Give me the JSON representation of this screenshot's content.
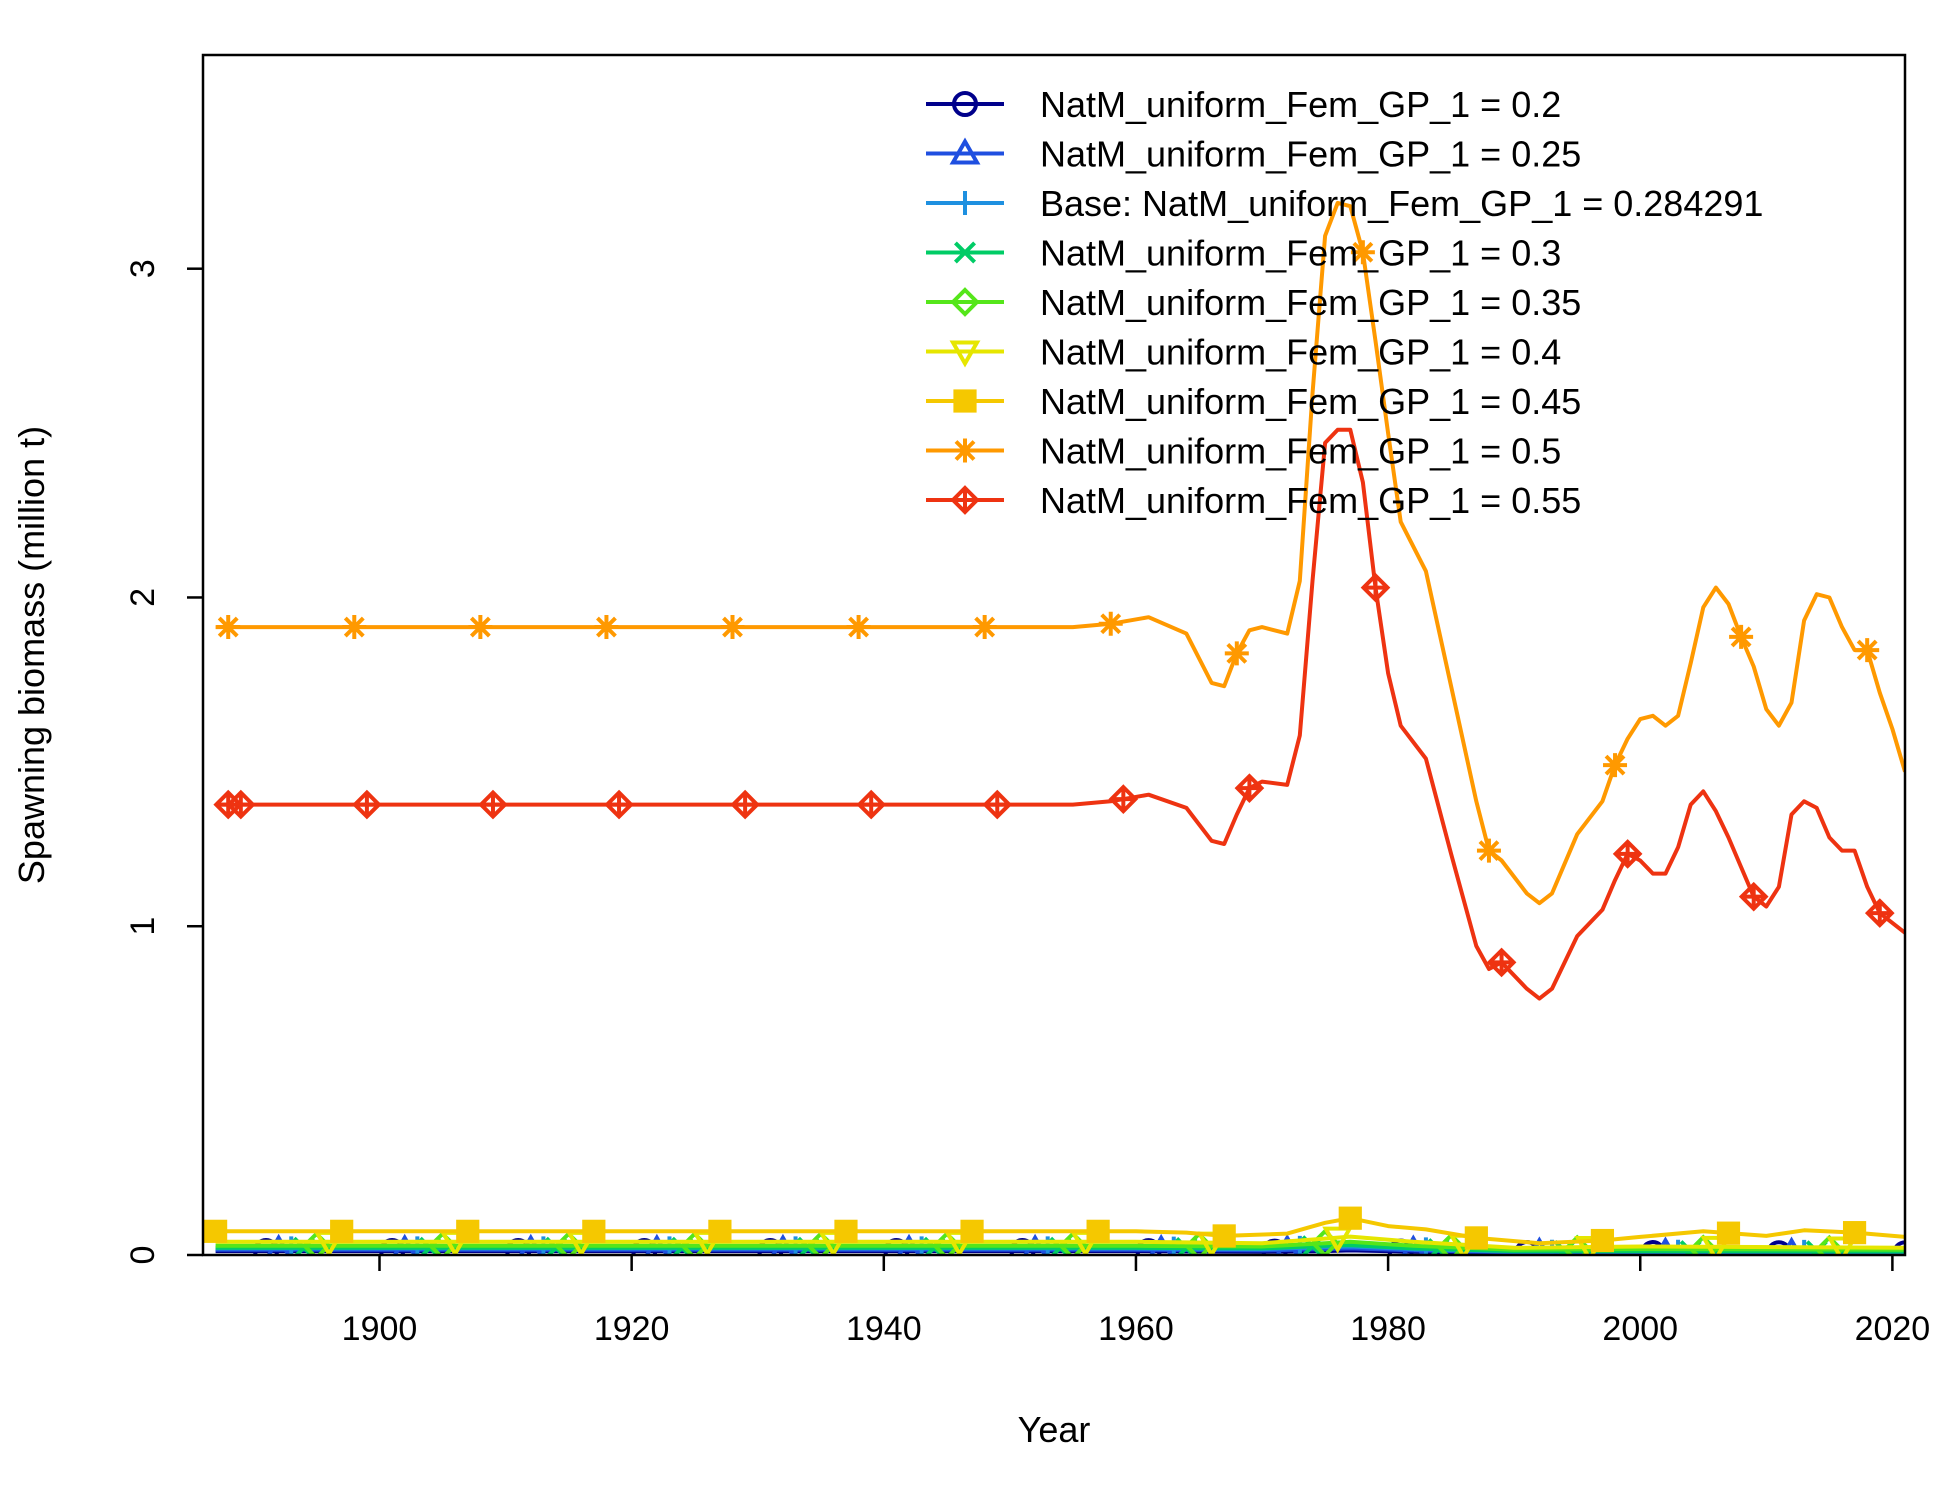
{
  "chart_data": {
    "type": "line",
    "xlabel": "Year",
    "ylabel": "Spawning biomass (million t)",
    "xlim": [
      1886,
      2021
    ],
    "ylim": [
      0,
      3.65
    ],
    "x_ticks": [
      1900,
      1920,
      1940,
      1960,
      1980,
      2000,
      2020
    ],
    "y_ticks": [
      0,
      1,
      2,
      3
    ],
    "grid": false,
    "legend_position": "top-right",
    "series": [
      {
        "name": "NatM_uniform_Fem_GP_1 = 0.2",
        "color": "#00008B",
        "marker": "circle",
        "marker_years": [
          1891,
          1901,
          1911,
          1921,
          1931,
          1941,
          1951,
          1961,
          1971,
          1981,
          1991,
          2001,
          2011,
          2021
        ],
        "x": [
          1887,
          1960,
          1970,
          1975,
          1977,
          1982,
          1990,
          2000,
          2021
        ],
        "y": [
          0.012,
          0.012,
          0.01,
          0.012,
          0.014,
          0.01,
          0.006,
          0.006,
          0.005
        ]
      },
      {
        "name": "NatM_uniform_Fem_GP_1 = 0.25",
        "color": "#1F4FE0",
        "marker": "triangle-up",
        "marker_years": [
          1892,
          1902,
          1912,
          1922,
          1932,
          1942,
          1952,
          1962,
          1972,
          1982,
          1992,
          2002,
          2012
        ],
        "x": [
          1887,
          1960,
          1970,
          1975,
          1977,
          1982,
          1990,
          2000,
          2021
        ],
        "y": [
          0.016,
          0.016,
          0.014,
          0.018,
          0.02,
          0.014,
          0.008,
          0.008,
          0.007
        ]
      },
      {
        "name": "Base: NatM_uniform_Fem_GP_1 = 0.284291",
        "color": "#1E90E0",
        "marker": "plus",
        "marker_years": [
          1893,
          1903,
          1913,
          1923,
          1933,
          1943,
          1953,
          1963,
          1973,
          1983,
          1993,
          2003,
          2013
        ],
        "x": [
          1887,
          1960,
          1970,
          1975,
          1977,
          1982,
          1990,
          2000,
          2021
        ],
        "y": [
          0.02,
          0.02,
          0.018,
          0.024,
          0.026,
          0.018,
          0.01,
          0.01,
          0.009
        ]
      },
      {
        "name": "NatM_uniform_Fem_GP_1 = 0.3",
        "color": "#00CC66",
        "marker": "x",
        "marker_years": [
          1894,
          1904,
          1914,
          1924,
          1934,
          1944,
          1954,
          1964,
          1974,
          1984,
          1994,
          2004,
          2014
        ],
        "x": [
          1887,
          1960,
          1970,
          1975,
          1977,
          1982,
          1990,
          2000,
          2021
        ],
        "y": [
          0.022,
          0.022,
          0.02,
          0.028,
          0.03,
          0.02,
          0.012,
          0.012,
          0.011
        ]
      },
      {
        "name": "NatM_uniform_Fem_GP_1 = 0.35",
        "color": "#55E61A",
        "marker": "diamond",
        "marker_years": [
          1895,
          1905,
          1915,
          1925,
          1935,
          1945,
          1955,
          1965,
          1975,
          1985,
          1995,
          2005,
          2015
        ],
        "x": [
          1887,
          1960,
          1970,
          1975,
          1977,
          1982,
          1990,
          2000,
          2021
        ],
        "y": [
          0.028,
          0.028,
          0.026,
          0.036,
          0.04,
          0.028,
          0.016,
          0.018,
          0.016
        ]
      },
      {
        "name": "NatM_uniform_Fem_GP_1 = 0.4",
        "color": "#E6E600",
        "marker": "triangle-down",
        "marker_years": [
          1896,
          1906,
          1916,
          1926,
          1936,
          1946,
          1956,
          1966,
          1976,
          1986,
          1996,
          2006,
          2016
        ],
        "x": [
          1887,
          1960,
          1970,
          1975,
          1977,
          1982,
          1990,
          2000,
          2021
        ],
        "y": [
          0.04,
          0.04,
          0.036,
          0.05,
          0.056,
          0.04,
          0.022,
          0.026,
          0.022
        ]
      },
      {
        "name": "NatM_uniform_Fem_GP_1 = 0.45",
        "color": "#F5C800",
        "marker": "square",
        "marker_years": [
          1887,
          1897,
          1907,
          1917,
          1927,
          1937,
          1947,
          1957,
          1967,
          1977,
          1987,
          1997,
          2007,
          2017
        ],
        "x": [
          1887,
          1960,
          1964,
          1967,
          1972,
          1975,
          1977,
          1980,
          1983,
          1987,
          1992,
          1997,
          2000,
          2005,
          2010,
          2013,
          2017,
          2021
        ],
        "y": [
          0.072,
          0.072,
          0.068,
          0.058,
          0.065,
          0.098,
          0.112,
          0.088,
          0.078,
          0.052,
          0.036,
          0.044,
          0.055,
          0.072,
          0.058,
          0.075,
          0.068,
          0.055
        ]
      },
      {
        "name": "NatM_uniform_Fem_GP_1 = 0.5",
        "color": "#FF9900",
        "marker": "asterisk",
        "marker_years": [
          1888,
          1898,
          1908,
          1918,
          1928,
          1938,
          1948,
          1958,
          1968,
          1978,
          1988,
          1998,
          2008,
          2018
        ],
        "x": [
          1887,
          1955,
          1958,
          1961,
          1964,
          1966,
          1967,
          1968,
          1969,
          1970,
          1972,
          1973,
          1974,
          1975,
          1976,
          1977,
          1978,
          1979,
          1980,
          1981,
          1983,
          1985,
          1987,
          1988,
          1989,
          1991,
          1992,
          1993,
          1995,
          1997,
          1998,
          1999,
          2000,
          2001,
          2002,
          2003,
          2004,
          2005,
          2006,
          2007,
          2008,
          2009,
          2010,
          2011,
          2012,
          2013,
          2014,
          2015,
          2016,
          2017,
          2018,
          2019,
          2020,
          2021
        ],
        "y": [
          1.91,
          1.91,
          1.92,
          1.94,
          1.89,
          1.74,
          1.73,
          1.83,
          1.9,
          1.91,
          1.89,
          2.05,
          2.62,
          3.1,
          3.2,
          3.19,
          3.05,
          2.78,
          2.5,
          2.23,
          2.08,
          1.73,
          1.38,
          1.23,
          1.2,
          1.1,
          1.07,
          1.1,
          1.28,
          1.38,
          1.49,
          1.57,
          1.63,
          1.64,
          1.61,
          1.64,
          1.8,
          1.97,
          2.03,
          1.98,
          1.88,
          1.79,
          1.66,
          1.61,
          1.68,
          1.93,
          2.01,
          2.0,
          1.91,
          1.84,
          1.84,
          1.71,
          1.6,
          1.47
        ]
      },
      {
        "name": "NatM_uniform_Fem_GP_1 = 0.55",
        "color": "#EE3311",
        "marker": "diamond-plus",
        "marker_years": [
          1888,
          1889,
          1899,
          1909,
          1919,
          1929,
          1939,
          1949,
          1959,
          1969,
          1979,
          1989,
          1999,
          2009,
          2019
        ],
        "x": [
          1887,
          1955,
          1958,
          1961,
          1964,
          1966,
          1967,
          1968,
          1969,
          1970,
          1972,
          1973,
          1974,
          1975,
          1976,
          1977,
          1978,
          1979,
          1980,
          1981,
          1983,
          1985,
          1987,
          1988,
          1989,
          1991,
          1992,
          1993,
          1995,
          1997,
          1998,
          1999,
          2000,
          2001,
          2002,
          2003,
          2004,
          2005,
          2006,
          2007,
          2008,
          2009,
          2010,
          2011,
          2012,
          2013,
          2014,
          2015,
          2016,
          2017,
          2018,
          2019,
          2020,
          2021
        ],
        "y": [
          1.37,
          1.37,
          1.38,
          1.4,
          1.36,
          1.26,
          1.25,
          1.34,
          1.42,
          1.44,
          1.43,
          1.58,
          2.05,
          2.47,
          2.51,
          2.51,
          2.35,
          2.03,
          1.77,
          1.61,
          1.51,
          1.22,
          0.94,
          0.87,
          0.89,
          0.81,
          0.78,
          0.81,
          0.97,
          1.05,
          1.14,
          1.22,
          1.2,
          1.16,
          1.16,
          1.24,
          1.37,
          1.41,
          1.35,
          1.27,
          1.18,
          1.09,
          1.06,
          1.12,
          1.34,
          1.38,
          1.36,
          1.27,
          1.23,
          1.23,
          1.12,
          1.04,
          1.01,
          0.98
        ]
      }
    ]
  }
}
